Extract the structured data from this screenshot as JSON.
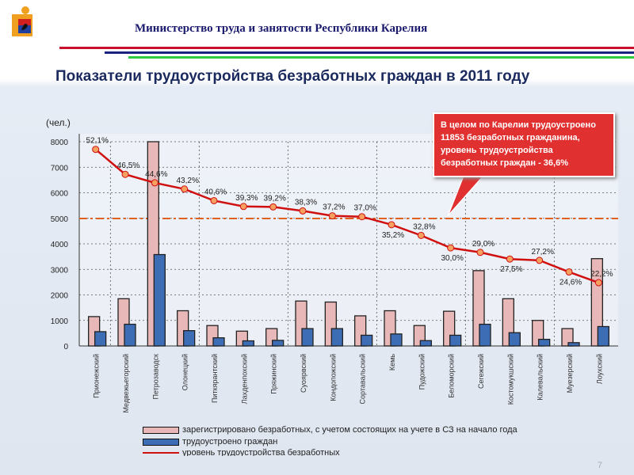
{
  "header": {
    "ministry": "Министерство труда и занятости Республики Карелия",
    "title": "Показатели трудоустройства безработных граждан в 2011 году",
    "page": "7"
  },
  "callout": "В целом по Карелии трудоустроено 11853 безработных гражданина, уровень трудоустройства безработных граждан  - 36,6%",
  "colors": {
    "registered": "#e8b8b8",
    "employed": "#3d6db5",
    "rate_line": "#d01010",
    "average_line": "#e06020",
    "stripes": [
      "#c8102e",
      "#1a237e",
      "#2ecc40"
    ]
  },
  "chart_data": {
    "type": "bar",
    "ylabel": "(чел.)",
    "ylim": [
      0,
      8000
    ],
    "yticks": [
      0,
      1000,
      2000,
      3000,
      4000,
      5000,
      6000,
      7000,
      8000
    ],
    "y2lim": [
      8,
      54
    ],
    "grid": true,
    "legend_position": "bottom",
    "categories": [
      "Прионежский",
      "Медвежьегорский",
      "Петрозаводск",
      "Олонецкий",
      "Питкярантский",
      "Лахденпохский",
      "Пряжинский",
      "Суоярвский",
      "Кондопожский",
      "Сортавальский",
      "Кемь",
      "Пудожский",
      "Беломорский",
      "Сегежский",
      "Костомукшский",
      "Калевальский",
      "Муезерский",
      "Лоухский"
    ],
    "series": [
      {
        "name": "зарегистрировано безработных, с учетом состоящих на учете в СЗ на начало года",
        "type": "bar",
        "values": [
          1150,
          1850,
          8000,
          1380,
          800,
          580,
          680,
          1760,
          1720,
          1180,
          1380,
          800,
          1360,
          2950,
          1850,
          1000,
          680,
          3420
        ]
      },
      {
        "name": "трудоустроено граждан",
        "type": "bar",
        "values": [
          560,
          850,
          3580,
          600,
          320,
          200,
          220,
          680,
          680,
          420,
          470,
          210,
          420,
          850,
          520,
          260,
          130,
          760
        ]
      },
      {
        "name": "уровень трудоустройства безработных",
        "type": "line",
        "axis": "secondary",
        "values": [
          52.1,
          46.5,
          44.6,
          43.2,
          40.6,
          39.3,
          39.2,
          38.3,
          37.2,
          37.0,
          35.2,
          32.8,
          30.0,
          29.0,
          27.5,
          27.2,
          24.6,
          22.2
        ],
        "labels": [
          "52,1%",
          "46,5%",
          "44,6%",
          "43,2%",
          "40,6%",
          "39,3%",
          "39,2%",
          "38,3%",
          "37,2%",
          "37,0%",
          "35,2%",
          "32,8%",
          "30,0%",
          "29,0%",
          "27,5%",
          "27,2%",
          "24,6%",
          "22,2%"
        ]
      }
    ],
    "average_rate": 36.6
  }
}
